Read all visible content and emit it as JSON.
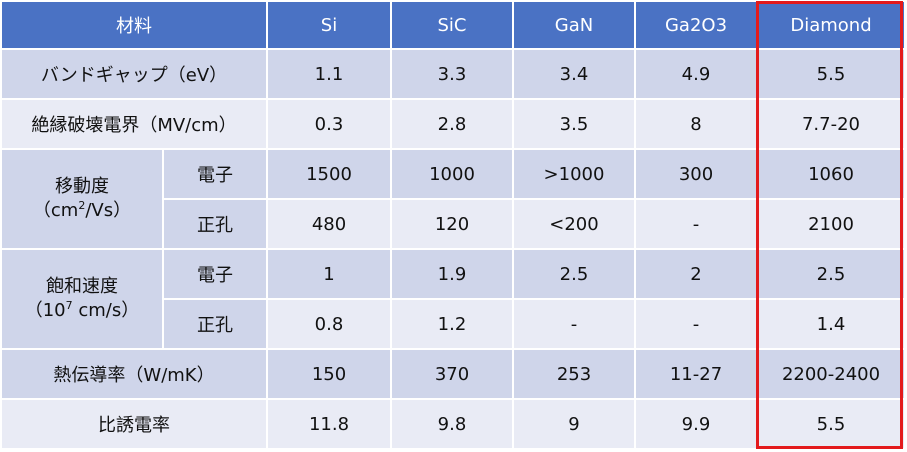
{
  "header": {
    "material": "材料",
    "columns": [
      "Si",
      "SiC",
      "GaN",
      "Ga2O3",
      "Diamond"
    ]
  },
  "rows": {
    "bandgap": {
      "label": "バンドギャップ（eV）",
      "values": [
        "1.1",
        "3.3",
        "3.4",
        "4.9",
        "5.5"
      ]
    },
    "breakdown": {
      "label": "絶縁破壊電界（MV/cm）",
      "values": [
        "0.3",
        "2.8",
        "3.5",
        "8",
        "7.7-20"
      ]
    },
    "mobility": {
      "label_line1": "移動度",
      "label_line2_pre": "（cm",
      "label_line2_sup": "2",
      "label_line2_post": "/Vs）",
      "electron": {
        "label": "電子",
        "values": [
          "1500",
          "1000",
          ">1000",
          "300",
          "1060"
        ]
      },
      "hole": {
        "label": "正孔",
        "values": [
          "480",
          "120",
          "<200",
          "-",
          "2100"
        ]
      }
    },
    "saturation": {
      "label_line1": "飽和速度",
      "label_line2_pre": "（10",
      "label_line2_sup": "7",
      "label_line2_post": " cm/s）",
      "electron": {
        "label": "電子",
        "values": [
          "1",
          "1.9",
          "2.5",
          "2",
          "2.5"
        ]
      },
      "hole": {
        "label": "正孔",
        "values": [
          "0.8",
          "1.2",
          "-",
          "-",
          "1.4"
        ]
      }
    },
    "thermal": {
      "label": "熱伝導率（W/mK）",
      "values": [
        "150",
        "370",
        "253",
        "11-27",
        "2200-2400"
      ]
    },
    "permittivity": {
      "label": "比誘電率",
      "values": [
        "11.8",
        "9.8",
        "9",
        "9.9",
        "5.5"
      ]
    }
  },
  "colors": {
    "header_bg": "#4a72c4",
    "row_dark": "#cfd5ea",
    "row_light": "#e9ebf5",
    "highlight": "#e31a1c"
  }
}
